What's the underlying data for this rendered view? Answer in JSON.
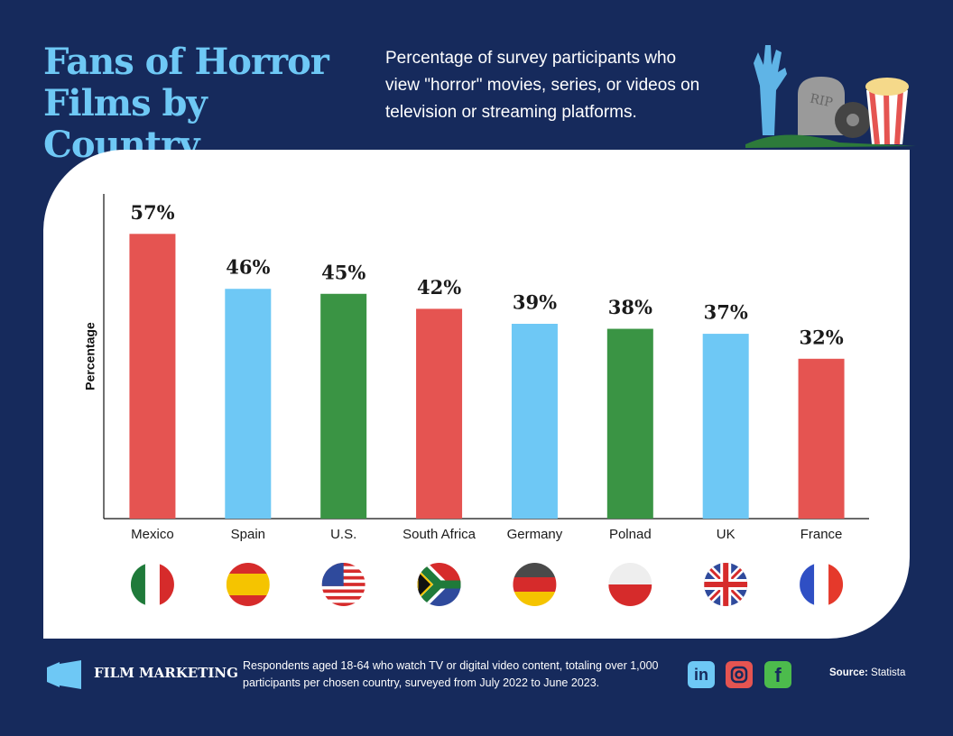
{
  "header": {
    "title": "Fans of Horror Films by Country",
    "subtitle": "Percentage of survey participants who view \"horror\" movies, series, or videos on television or streaming platforms."
  },
  "chart_data": {
    "type": "bar",
    "y_label": "Percentage",
    "categories": [
      "Mexico",
      "Spain",
      "U.S.",
      "South Africa",
      "Germany",
      "Polnad",
      "UK",
      "France"
    ],
    "values": [
      57,
      46,
      45,
      42,
      39,
      38,
      37,
      32
    ],
    "value_labels": [
      "57%",
      "46%",
      "45%",
      "42%",
      "39%",
      "38%",
      "37%",
      "32%"
    ],
    "colors": [
      "#e55451",
      "#6ec8f5",
      "#3a9444",
      "#e55451",
      "#6ec8f5",
      "#3a9444",
      "#6ec8f5",
      "#e55451"
    ],
    "ylim": [
      0,
      65
    ],
    "grid": false
  },
  "footer": {
    "brand": "FILM MARKETING",
    "note": "Respondents aged 18-64 who watch TV or digital video content, totaling over 1,000 participants per chosen country, surveyed from July 2022 to June 2023.",
    "source_label": "Source:",
    "source": "Statista"
  }
}
